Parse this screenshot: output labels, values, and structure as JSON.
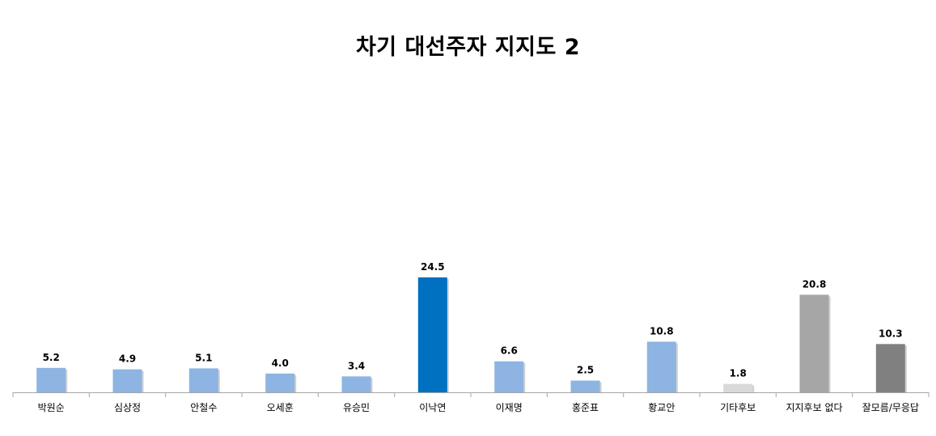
{
  "chart_data": {
    "type": "bar",
    "title": "차기 대선주자 지지도 2",
    "xlabel": "",
    "ylabel": "",
    "ylim": [
      0,
      30
    ],
    "grid": false,
    "legend": "none",
    "categories": [
      "박원순",
      "심상정",
      "안철수",
      "오세훈",
      "유승민",
      "이낙연",
      "이재명",
      "홍준표",
      "황교안",
      "기타후보",
      "지지후보 없다",
      "잘모름/무응답"
    ],
    "values": [
      5.2,
      4.9,
      5.1,
      4.0,
      3.4,
      24.5,
      6.6,
      2.5,
      10.8,
      1.8,
      20.8,
      10.3
    ],
    "value_labels": [
      "5.2",
      "4.9",
      "5.1",
      "4.0",
      "3.4",
      "24.5",
      "6.6",
      "2.5",
      "10.8",
      "1.8",
      "20.8",
      "10.3"
    ],
    "colors": [
      "#8db4e2",
      "#8db4e2",
      "#8db4e2",
      "#8db4e2",
      "#8db4e2",
      "#0070c0",
      "#8db4e2",
      "#8db4e2",
      "#8db4e2",
      "#d9d9d9",
      "#a6a6a6",
      "#808080"
    ],
    "axis_color": "#a6a6a6"
  }
}
